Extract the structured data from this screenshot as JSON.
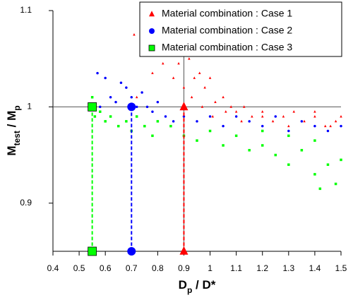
{
  "chart_data": {
    "type": "scatter",
    "xlabel": [
      "D",
      "p",
      " / D*"
    ],
    "ylabel": [
      "M",
      "test",
      " / M",
      "p"
    ],
    "xlim": [
      0.4,
      1.5
    ],
    "xticks": [
      0.4,
      0.5,
      0.6,
      0.7,
      0.8,
      0.9,
      1,
      1.1,
      1.2,
      1.3,
      1.4,
      1.5
    ],
    "ylim": [
      0.85,
      1.1
    ],
    "yticks": [
      0.9,
      1,
      1.1
    ],
    "hline": 1,
    "vline": 0.9,
    "legend": "top-right",
    "series": [
      {
        "name": "Material combination : Case 1",
        "color": "#ff0000",
        "marker": "triangle",
        "reference": {
          "x": 0.9,
          "y": 1
        },
        "x": [
          0.71,
          0.72,
          0.75,
          0.78,
          0.8,
          0.82,
          0.84,
          0.86,
          0.88,
          0.9,
          0.92,
          0.94,
          0.96,
          0.98,
          1.0,
          1.02,
          1.05,
          1.08,
          1.1,
          1.13,
          1.16,
          1.2,
          1.24,
          1.28,
          1.32,
          1.36,
          1.4,
          1.44,
          1.48,
          1.5,
          0.93,
          0.97,
          1.01,
          1.06,
          1.12,
          1.2,
          1.3,
          1.4,
          1.46
        ],
        "values": [
          1.075,
          1.01,
          1.06,
          1.035,
          1.08,
          1.045,
          1.06,
          1.03,
          1.045,
          1.02,
          1.05,
          1.03,
          1.035,
          1.02,
          1.03,
          1.005,
          1.01,
          1.0,
          0.995,
          1.0,
          0.99,
          0.995,
          0.985,
          0.99,
          0.995,
          0.985,
          0.99,
          0.98,
          0.985,
          0.99,
          1.01,
          1.0,
          0.99,
          0.995,
          0.985,
          0.99,
          0.98,
          0.995,
          0.98
        ]
      },
      {
        "name": "Material combination : Case 2",
        "color": "#0000ff",
        "marker": "circle",
        "reference": {
          "x": 0.7,
          "y": 1
        },
        "x": [
          0.57,
          0.58,
          0.6,
          0.62,
          0.64,
          0.66,
          0.68,
          0.7,
          0.72,
          0.74,
          0.76,
          0.78,
          0.8,
          0.83,
          0.86,
          0.9,
          0.95,
          1.0,
          1.05,
          1.1,
          1.15,
          1.2,
          1.25,
          1.3,
          1.35,
          1.4,
          1.45,
          1.5
        ],
        "values": [
          1.035,
          1.0,
          1.03,
          1.01,
          1.005,
          1.025,
          1.02,
          1.01,
          1.0,
          1.015,
          1.0,
          0.995,
          1.005,
          0.99,
          0.985,
          0.99,
          0.985,
          0.99,
          0.98,
          0.99,
          0.985,
          0.98,
          0.99,
          0.975,
          0.985,
          0.98,
          0.975,
          0.98
        ]
      },
      {
        "name": "Material combination : Case 3",
        "color": "#00ff00",
        "marker": "square",
        "reference": {
          "x": 0.55,
          "y": 1
        },
        "x": [
          0.55,
          0.56,
          0.58,
          0.6,
          0.62,
          0.65,
          0.68,
          0.7,
          0.72,
          0.75,
          0.78,
          0.8,
          0.85,
          0.9,
          0.95,
          1.0,
          1.05,
          1.1,
          1.15,
          1.2,
          1.25,
          1.3,
          1.35,
          1.4,
          1.42,
          1.45,
          1.48,
          1.5,
          1.2,
          1.3,
          1.4
        ],
        "values": [
          1.01,
          0.99,
          0.995,
          0.985,
          0.99,
          0.98,
          0.985,
          0.975,
          0.99,
          0.98,
          0.97,
          0.985,
          0.98,
          0.97,
          0.965,
          0.975,
          0.96,
          0.97,
          0.955,
          0.96,
          0.95,
          0.94,
          0.955,
          0.93,
          0.915,
          0.94,
          0.92,
          0.945,
          0.975,
          0.97,
          0.965
        ]
      }
    ]
  }
}
